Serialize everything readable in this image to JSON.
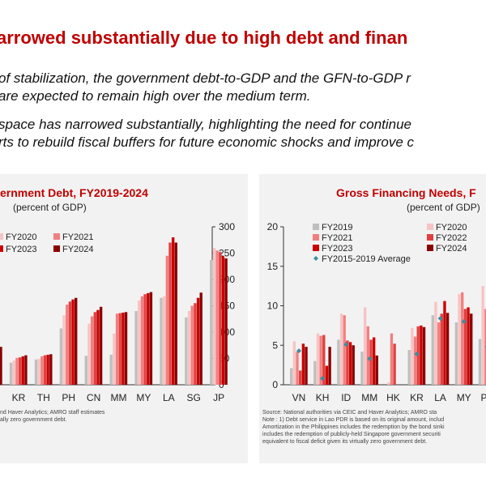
{
  "title": "arrowed substantially due to high debt and finan",
  "bullets": [
    "of stabilization, the government debt-to-GDP and the GFN-to-GDP r",
    "are expected to remain high over the medium term.",
    "space has narrowed substantially, highlighting the need for continue",
    "rts to rebuild fiscal buffers for future economic shocks and improve c"
  ],
  "colors": {
    "title": "#c00000",
    "panel_bg": "#f2f2f2",
    "FY2019": "#bfbfbf",
    "FY2020": "#f8c3c3",
    "FY2021": "#f08080",
    "FY2022": "#e0403f",
    "FY2023": "#cc0000",
    "FY2024": "#8b0000",
    "average_marker": "#3a8fa3"
  },
  "chart_data": [
    {
      "type": "bar",
      "title": "ernment Debt, FY2019-2024",
      "unit_label": "(percent of GDP)",
      "categories": [
        "",
        "KR",
        "TH",
        "PH",
        "CN",
        "MM",
        "MY",
        "LA",
        "SG",
        "JP"
      ],
      "legend": [
        {
          "name": "FY2020",
          "color_key": "FY2020"
        },
        {
          "name": "FY2021",
          "color_key": "FY2021"
        },
        {
          "name": "FY2023",
          "color_key": "FY2023"
        },
        {
          "name": "FY2024",
          "color_key": "FY2024"
        }
      ],
      "series": [
        {
          "key": "FY2019",
          "values": [
            60,
            42,
            48,
            107,
            55,
            57,
            140,
            165,
            128,
            237
          ]
        },
        {
          "key": "FY2020",
          "values": [
            62,
            46,
            49,
            132,
            116,
            97,
            160,
            168,
            140,
            260
          ]
        },
        {
          "key": "FY2021",
          "values": [
            65,
            51,
            54,
            152,
            130,
            135,
            168,
            245,
            150,
            255
          ]
        },
        {
          "key": "FY2022",
          "values": [
            68,
            52,
            56,
            158,
            138,
            136,
            172,
            270,
            155,
            252
          ]
        },
        {
          "key": "FY2023",
          "values": [
            70,
            54,
            57,
            162,
            142,
            137,
            174,
            280,
            165,
            244
          ]
        },
        {
          "key": "FY2024",
          "values": [
            72,
            56,
            58,
            165,
            148,
            138,
            176,
            270,
            175,
            240
          ]
        }
      ],
      "yaxis": {
        "side": "right",
        "ylim": [
          0,
          300
        ],
        "ticks": [
          0,
          50,
          100,
          150,
          200,
          250,
          300
        ]
      },
      "grid": false
    },
    {
      "type": "bar",
      "title": "Gross Financing Needs, F",
      "unit_label": "(percent of GDP)",
      "categories": [
        "VN",
        "KH",
        "ID",
        "MM",
        "HK",
        "KR",
        "LA",
        "MY",
        "PH"
      ],
      "legend": [
        {
          "name": "FY2019",
          "color_key": "FY2019"
        },
        {
          "name": "FY2020",
          "color_key": "FY2020"
        },
        {
          "name": "FY2021",
          "color_key": "FY2021"
        },
        {
          "name": "FY2022",
          "color_key": "FY2022"
        },
        {
          "name": "FY2023",
          "color_key": "FY2023"
        },
        {
          "name": "FY2024",
          "color_key": "FY2024"
        },
        {
          "name": "FY2015-2019 Average",
          "color_key": "average_marker",
          "marker": "diamond"
        }
      ],
      "series": [
        {
          "key": "FY2019",
          "values": [
            2.1,
            3.0,
            5.7,
            4.2,
            0.0,
            4.4,
            8.8,
            7.9,
            5.8
          ]
        },
        {
          "key": "FY2020",
          "values": [
            5.5,
            6.5,
            9.0,
            9.8,
            0.3,
            7.2,
            10.5,
            11.5,
            12.5
          ]
        },
        {
          "key": "FY2021",
          "values": [
            4.2,
            6.2,
            8.8,
            7.4,
            6.5,
            6.1,
            7.9,
            11.7,
            9.6
          ]
        },
        {
          "key": "FY2022",
          "values": [
            1.8,
            6.3,
            5.6,
            5.7,
            5.2,
            7.4,
            9.0,
            9.6,
            10.1
          ]
        },
        {
          "key": "FY2023",
          "values": [
            5.2,
            2.4,
            5.4,
            6.0,
            0.0,
            7.5,
            10.6,
            9.8,
            11.2
          ]
        },
        {
          "key": "FY2024",
          "values": [
            4.8,
            4.8,
            5.0,
            3.7,
            0.0,
            7.3,
            9.1,
            9.0,
            10.8
          ]
        }
      ],
      "average": [
        4.3,
        0.8,
        5.1,
        3.3,
        null,
        3.9,
        8.4,
        8.0,
        4.8
      ],
      "yaxis": {
        "side": "left",
        "ylim": [
          0,
          20
        ],
        "ticks": [
          0,
          5,
          10,
          15,
          20
        ]
      },
      "grid": false
    }
  ],
  "notes_left": [
    "nd Haver Analytics; AMRO staff estimates",
    "ally zero government debt."
  ],
  "notes_right": [
    "Source: National authorities via CEIC and Haver Analytics; AMRO sta",
    "Note : 1) Debt service in Lao PDR is based on its original amount, includ",
    "Amortization in the Philippines includes the redemption by the bond sinki",
    "includes the redemption of publicly-held Singapore government securiti",
    "equivalent to fiscal deficit given its virtually zero government debt."
  ]
}
